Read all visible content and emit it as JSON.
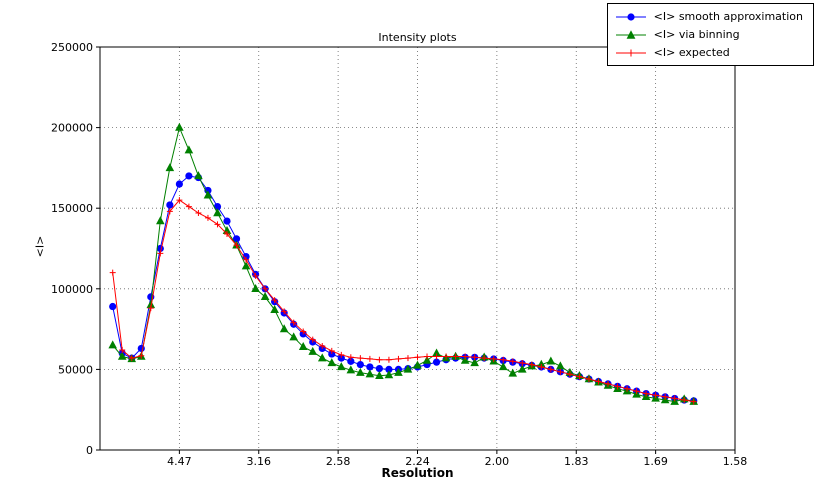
{
  "chart_data": {
    "type": "line",
    "title": "Intensity plots",
    "xlabel": "Resolution",
    "ylabel": "<I>",
    "xlim": [
      0,
      0.4
    ],
    "ylim": [
      0,
      250000
    ],
    "grid": true,
    "legend_position": "top-right",
    "x_ticks": [
      {
        "pos": 0.05,
        "label": "4.47"
      },
      {
        "pos": 0.1,
        "label": "3.16"
      },
      {
        "pos": 0.15,
        "label": "2.58"
      },
      {
        "pos": 0.2,
        "label": "2.24"
      },
      {
        "pos": 0.25,
        "label": "2.00"
      },
      {
        "pos": 0.3,
        "label": "1.83"
      },
      {
        "pos": 0.35,
        "label": "1.69"
      },
      {
        "pos": 0.4,
        "label": "1.58"
      }
    ],
    "y_ticks": [
      {
        "pos": 0,
        "label": "0"
      },
      {
        "pos": 50000,
        "label": "50000"
      },
      {
        "pos": 100000,
        "label": "100000"
      },
      {
        "pos": 150000,
        "label": "150000"
      },
      {
        "pos": 200000,
        "label": "200000"
      },
      {
        "pos": 250000,
        "label": "250000"
      }
    ],
    "x": [
      0.008,
      0.014,
      0.02,
      0.026,
      0.032,
      0.038,
      0.044,
      0.05,
      0.056,
      0.062,
      0.068,
      0.074,
      0.08,
      0.086,
      0.092,
      0.098,
      0.104,
      0.11,
      0.116,
      0.122,
      0.128,
      0.134,
      0.14,
      0.146,
      0.152,
      0.158,
      0.164,
      0.17,
      0.176,
      0.182,
      0.188,
      0.194,
      0.2,
      0.206,
      0.212,
      0.218,
      0.224,
      0.23,
      0.236,
      0.242,
      0.248,
      0.254,
      0.26,
      0.266,
      0.272,
      0.278,
      0.284,
      0.29,
      0.296,
      0.302,
      0.308,
      0.314,
      0.32,
      0.326,
      0.332,
      0.338,
      0.344,
      0.35,
      0.356,
      0.362,
      0.368,
      0.374
    ],
    "series": [
      {
        "name": "<I> smooth approximation",
        "color": "#0000ff",
        "marker": "circle",
        "values": [
          89000,
          60000,
          57000,
          63000,
          95000,
          125000,
          152000,
          165000,
          170000,
          169000,
          161000,
          151000,
          142000,
          131000,
          120000,
          109000,
          100000,
          92000,
          85000,
          78000,
          72000,
          67000,
          63000,
          59500,
          57000,
          55000,
          53000,
          51500,
          50500,
          50000,
          50000,
          50500,
          51500,
          53000,
          54500,
          56000,
          57000,
          57500,
          57500,
          57000,
          56500,
          55500,
          54500,
          53500,
          52500,
          51500,
          50000,
          48500,
          47000,
          45500,
          44000,
          42500,
          41000,
          39500,
          38000,
          36500,
          35000,
          34000,
          33000,
          32000,
          31000,
          30500
        ]
      },
      {
        "name": "<I> via binning",
        "color": "#008000",
        "marker": "triangle",
        "values": [
          65000,
          58000,
          56500,
          58000,
          90000,
          142000,
          175000,
          200000,
          186000,
          170000,
          158000,
          147000,
          136000,
          127000,
          114000,
          100000,
          95000,
          87000,
          75000,
          70000,
          64000,
          61000,
          57000,
          54000,
          51500,
          49500,
          48000,
          47000,
          46000,
          46500,
          48000,
          50000,
          52500,
          55500,
          60000,
          57000,
          58000,
          55500,
          54000,
          57500,
          55000,
          51500,
          47500,
          50000,
          52000,
          53000,
          55000,
          52000,
          48000,
          46000,
          44000,
          42000,
          40000,
          38000,
          36500,
          34500,
          33000,
          32000,
          31000,
          30000,
          31500,
          30000
        ]
      },
      {
        "name": "<I> expected",
        "color": "#ff0000",
        "marker": "plus",
        "values": [
          110000,
          62000,
          57000,
          58500,
          88000,
          122000,
          148000,
          155000,
          151000,
          147000,
          144000,
          140000,
          134000,
          127000,
          118000,
          108000,
          100000,
          93000,
          86000,
          79000,
          73500,
          68500,
          64500,
          61500,
          59000,
          57500,
          57000,
          56500,
          56000,
          56000,
          56500,
          57000,
          57500,
          58000,
          58000,
          58000,
          58000,
          58000,
          57500,
          57000,
          56500,
          56000,
          55000,
          54000,
          53000,
          51500,
          50000,
          48500,
          47000,
          45500,
          44000,
          42500,
          41000,
          39500,
          38000,
          36500,
          35000,
          34000,
          33000,
          32000,
          31000,
          30000
        ]
      }
    ]
  }
}
